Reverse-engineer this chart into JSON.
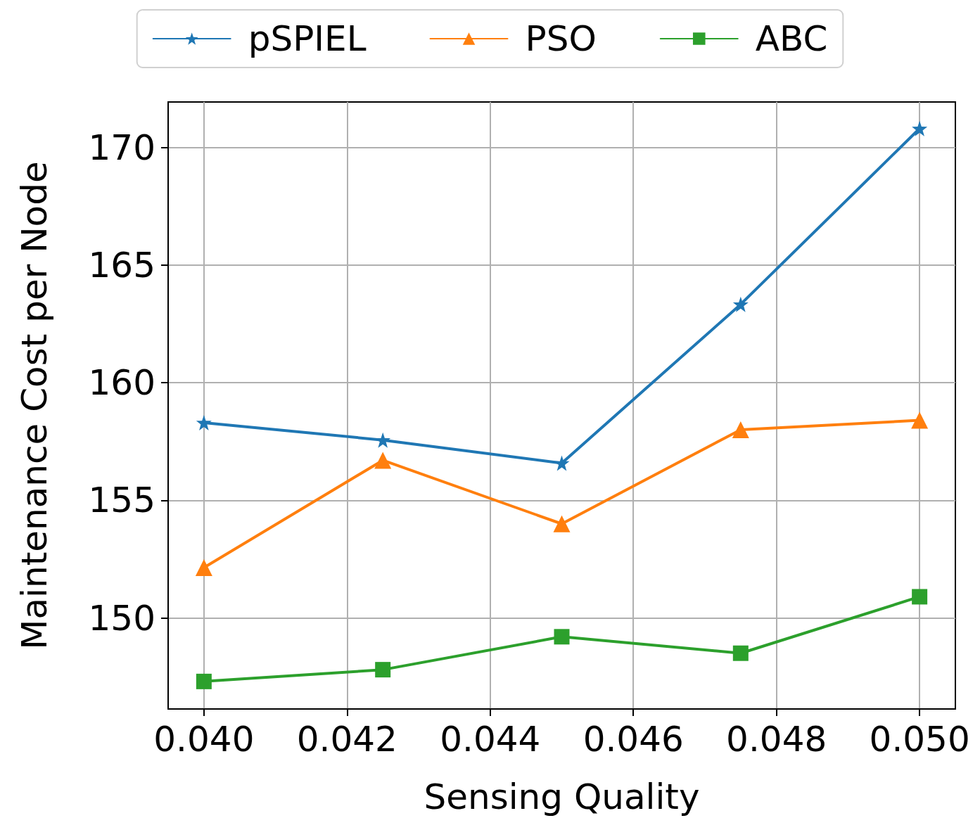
{
  "chart_data": {
    "type": "line",
    "xlabel": "Sensing Quality",
    "ylabel": "Maintenance Cost per Node",
    "x": [
      0.04,
      0.0425,
      0.045,
      0.0475,
      0.05
    ],
    "series": [
      {
        "name": "pSPIEL",
        "color": "#1f77b4",
        "marker": "star",
        "values": [
          158.3,
          157.56,
          156.58,
          163.33,
          170.8
        ]
      },
      {
        "name": "PSO",
        "color": "#ff7f0e",
        "marker": "triangle",
        "values": [
          152.14,
          156.7,
          154.0,
          158.0,
          158.4
        ]
      },
      {
        "name": "ABC",
        "color": "#2ca02c",
        "marker": "square",
        "values": [
          147.3,
          147.8,
          149.2,
          148.5,
          150.9
        ]
      }
    ],
    "xlim": [
      0.0395,
      0.0505
    ],
    "xticks": [
      {
        "value": 0.04,
        "label": "0.040"
      },
      {
        "value": 0.042,
        "label": "0.042"
      },
      {
        "value": 0.044,
        "label": "0.044"
      },
      {
        "value": 0.046,
        "label": "0.046"
      },
      {
        "value": 0.048,
        "label": "0.048"
      },
      {
        "value": 0.05,
        "label": "0.050"
      }
    ],
    "ylim": [
      146.13,
      171.93
    ],
    "yticks": [
      150,
      155,
      160,
      165,
      170
    ],
    "grid": true,
    "legend": "top",
    "line_style": "solid"
  }
}
